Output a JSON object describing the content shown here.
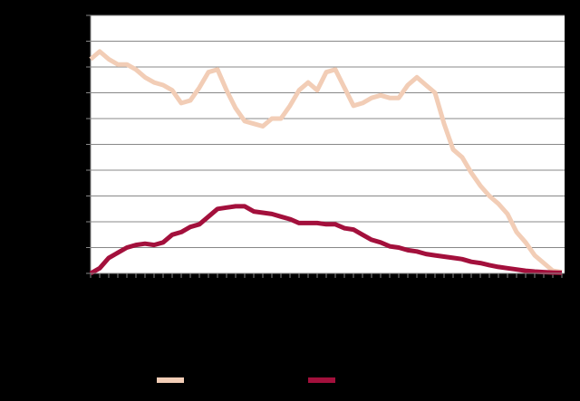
{
  "chart_data": {
    "type": "line",
    "categories": [
      null,
      null,
      null,
      null,
      null,
      null,
      null,
      null,
      null,
      null,
      null,
      null,
      null,
      null,
      null,
      null,
      null,
      null,
      null,
      null,
      null,
      null,
      null,
      null,
      null,
      null,
      null,
      null,
      null,
      null,
      null,
      null,
      null,
      null,
      null,
      null,
      null,
      null,
      null,
      null,
      null,
      null,
      null,
      null,
      null,
      null,
      null,
      null,
      null,
      null,
      null,
      null,
      null
    ],
    "series": [
      {
        "color": "#f2cdb6",
        "values": [
          8.3,
          8.6,
          8.3,
          8.1,
          8.1,
          7.9,
          7.6,
          7.4,
          7.3,
          7.1,
          6.6,
          6.7,
          7.2,
          7.8,
          7.9,
          7.1,
          6.4,
          5.9,
          5.8,
          5.7,
          6.0,
          6.0,
          6.5,
          7.1,
          7.4,
          7.1,
          7.8,
          7.9,
          7.2,
          6.5,
          6.6,
          6.8,
          6.9,
          6.8,
          6.8,
          7.3,
          7.6,
          7.3,
          7.0,
          5.8,
          4.8,
          4.5,
          3.9,
          3.4,
          3.0,
          2.7,
          2.3,
          1.6,
          1.2,
          0.7,
          0.4,
          0.1,
          0.05
        ]
      },
      {
        "color": "#a3103c",
        "values": [
          0,
          0.2,
          0.6,
          0.8,
          1.0,
          1.1,
          1.15,
          1.1,
          1.2,
          1.5,
          1.6,
          1.8,
          1.9,
          2.2,
          2.5,
          2.55,
          2.6,
          2.6,
          2.4,
          2.35,
          2.3,
          2.2,
          2.1,
          1.95,
          1.95,
          1.95,
          1.9,
          1.9,
          1.75,
          1.7,
          1.5,
          1.3,
          1.2,
          1.05,
          1.0,
          0.9,
          0.85,
          0.75,
          0.7,
          0.65,
          0.6,
          0.55,
          0.45,
          0.4,
          0.32,
          0.25,
          0.2,
          0.15,
          0.1,
          0.07,
          0.05,
          0.03,
          0.02
        ]
      }
    ],
    "ylim": [
      0,
      10
    ],
    "yticks": [
      0,
      1,
      2,
      3,
      4,
      5,
      6,
      7,
      8,
      9,
      10
    ],
    "grid": true
  }
}
